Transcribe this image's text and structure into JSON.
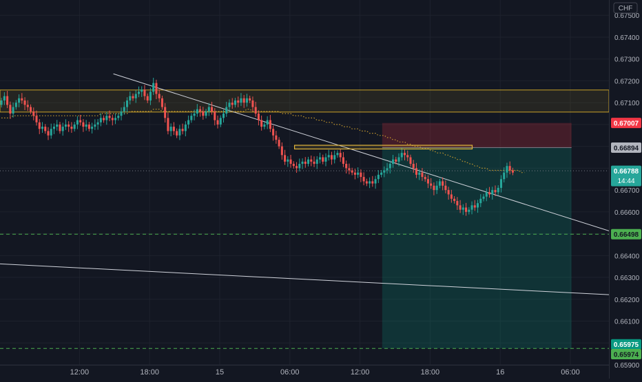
{
  "chart_data": {
    "type": "candlestick",
    "instrument_currency": "CHF",
    "ylim": [
      0.659,
      0.6757
    ],
    "y_ticks": [
      "0.67500",
      "0.67400",
      "0.67300",
      "0.67200",
      "0.67100",
      "0.67000",
      "0.66900",
      "0.66800",
      "0.66700",
      "0.66600",
      "0.66500",
      "0.66400",
      "0.66300",
      "0.66200",
      "0.66100",
      "0.66000",
      "0.65900"
    ],
    "x_ticks": [
      {
        "label": "12:00",
        "t": 12
      },
      {
        "label": "18:00",
        "t": 18
      },
      {
        "label": "15",
        "t": 24
      },
      {
        "label": "06:00",
        "t": 30
      },
      {
        "label": "12:00",
        "t": 36
      },
      {
        "label": "18:00",
        "t": 42
      },
      {
        "label": "16",
        "t": 48
      },
      {
        "label": "06:00",
        "t": 54
      }
    ],
    "xlim_hours": [
      5.2,
      57.3
    ],
    "bar_hours": 0.25,
    "candles_close": [
      0.6711,
      0.6713,
      0.6709,
      0.6705,
      0.6708,
      0.671,
      0.6712,
      0.6711,
      0.6709,
      0.6708,
      0.6706,
      0.6704,
      0.6701,
      0.6698,
      0.6699,
      0.6697,
      0.6695,
      0.6698,
      0.6699,
      0.67,
      0.6697,
      0.6699,
      0.67,
      0.6699,
      0.6698,
      0.67,
      0.6702,
      0.6701,
      0.6699,
      0.67,
      0.6698,
      0.6699,
      0.67,
      0.6701,
      0.6703,
      0.6702,
      0.6704,
      0.6703,
      0.6702,
      0.6703,
      0.6704,
      0.6706,
      0.6708,
      0.6711,
      0.6713,
      0.6712,
      0.6714,
      0.6715,
      0.6716,
      0.6713,
      0.6711,
      0.6715,
      0.6719,
      0.6714,
      0.6712,
      0.6708,
      0.6703,
      0.6697,
      0.6699,
      0.6697,
      0.6695,
      0.6698,
      0.6697,
      0.67,
      0.6702,
      0.6704,
      0.6705,
      0.6707,
      0.6706,
      0.6704,
      0.6706,
      0.6708,
      0.6706,
      0.6702,
      0.67,
      0.6703,
      0.6705,
      0.6708,
      0.671,
      0.6709,
      0.6711,
      0.671,
      0.6712,
      0.671,
      0.6712,
      0.6711,
      0.6708,
      0.6705,
      0.6702,
      0.6699,
      0.67,
      0.6702,
      0.6698,
      0.6695,
      0.6693,
      0.669,
      0.6686,
      0.6683,
      0.6684,
      0.6682,
      0.6681,
      0.668,
      0.6682,
      0.6683,
      0.6682,
      0.6684,
      0.6683,
      0.6682,
      0.6684,
      0.6685,
      0.6683,
      0.6685,
      0.6686,
      0.6684,
      0.6686,
      0.6687,
      0.6685,
      0.6682,
      0.668,
      0.6679,
      0.6678,
      0.6677,
      0.6678,
      0.6676,
      0.6674,
      0.6673,
      0.6674,
      0.6673,
      0.6675,
      0.6677,
      0.6678,
      0.6679,
      0.668,
      0.6682,
      0.6684,
      0.6683,
      0.6685,
      0.6687,
      0.6686,
      0.6685,
      0.6682,
      0.668,
      0.6677,
      0.6678,
      0.6676,
      0.6675,
      0.6673,
      0.6672,
      0.667,
      0.6672,
      0.6674,
      0.6672,
      0.667,
      0.6668,
      0.6666,
      0.6665,
      0.6663,
      0.6661,
      0.6662,
      0.666,
      0.6661,
      0.6663,
      0.6662,
      0.6664,
      0.6666,
      0.6667,
      0.6669,
      0.6668,
      0.667,
      0.6669,
      0.6671,
      0.6675,
      0.6678,
      0.6681,
      0.6679,
      0.6678
    ],
    "series": [
      {
        "type": "line",
        "style": "dotted",
        "color": "#c69a2e",
        "values": [
          0.6703,
          0.6703,
          0.6703,
          0.6703,
          0.6704,
          0.6704,
          0.6704,
          0.6704,
          0.6704,
          0.6704,
          0.6704,
          0.6704,
          0.6704,
          0.6704,
          0.6704,
          0.6704,
          0.6704,
          0.6704,
          0.6704,
          0.6704,
          0.6704,
          0.6704,
          0.6704,
          0.6704,
          0.6704,
          0.6704,
          0.6704,
          0.6704,
          0.6704,
          0.6704,
          0.6704,
          0.6704,
          0.6704,
          0.6704,
          0.6705,
          0.6705,
          0.6705,
          0.6705,
          0.6705,
          0.6705,
          0.6705,
          0.6705,
          0.6705,
          0.6705,
          0.6706,
          0.6706,
          0.6706,
          0.6706,
          0.6706,
          0.6706,
          0.6706,
          0.6706,
          0.6707,
          0.6707,
          0.6707,
          0.6706,
          0.6706,
          0.6706,
          0.6706,
          0.6706,
          0.6706,
          0.6706,
          0.6706,
          0.6706,
          0.6706,
          0.6706,
          0.6706,
          0.6706,
          0.6706,
          0.6706,
          0.6706,
          0.6706,
          0.6706,
          0.6706,
          0.6706,
          0.6706,
          0.6706,
          0.6706,
          0.6706,
          0.6706,
          0.6706,
          0.6706,
          0.6706,
          0.6706,
          0.6707,
          0.6707,
          0.6706,
          0.6706,
          0.6706,
          0.6706,
          0.6706,
          0.6706,
          0.6706,
          0.6706,
          0.6706,
          0.6706,
          0.6705,
          0.6705,
          0.6705,
          0.6705,
          0.6704,
          0.6704,
          0.6704,
          0.6704,
          0.6703,
          0.6703,
          0.6703,
          0.6703,
          0.6702,
          0.6702,
          0.6702,
          0.6701,
          0.6701,
          0.6701,
          0.67,
          0.67,
          0.67,
          0.6699,
          0.6699,
          0.6699,
          0.6698,
          0.6698,
          0.6698,
          0.6697,
          0.6697,
          0.6697,
          0.6696,
          0.6696,
          0.6696,
          0.6695,
          0.6695,
          0.6695,
          0.6694,
          0.6694,
          0.6693,
          0.6693,
          0.6692,
          0.6692,
          0.6692,
          0.6691,
          0.6691,
          0.669,
          0.669,
          0.669,
          0.6689,
          0.6689,
          0.6689,
          0.6688,
          0.6688,
          0.6687,
          0.6687,
          0.6687,
          0.6686,
          0.6686,
          0.6685,
          0.6685,
          0.6684,
          0.6684,
          0.6683,
          0.6683,
          0.6682,
          0.6682,
          0.6681,
          0.6681,
          0.668,
          0.668,
          0.668,
          0.6679,
          0.6679,
          0.6679,
          0.6679,
          0.6679,
          0.6679,
          0.6679,
          0.6679,
          0.6679,
          0.6679,
          0.6679,
          0.6678,
          0.6678
        ]
      }
    ],
    "drawings": {
      "zone_box": {
        "y_top": 0.67158,
        "y_bottom": 0.67057,
        "color": "#c9a227"
      },
      "small_box": {
        "t_start": 30.4,
        "t_end": 45.6,
        "y_top": 0.66905,
        "y_bottom": 0.66888,
        "color": "#e0b43a"
      },
      "trendline_upper": {
        "t1": 14.9,
        "y1": 0.67232,
        "t2": 57.3,
        "y2": 0.66513,
        "color": "#d1d4dc"
      },
      "trendline_lower": {
        "t1": 5.2,
        "y1": 0.66362,
        "t2": 57.3,
        "y2": 0.66221,
        "color": "#d1d4dc"
      },
      "position": {
        "type": "short",
        "t_start": 37.9,
        "t_end": 54.1,
        "entry": 0.66894,
        "stop": 0.67007,
        "target": 0.65975,
        "stop_color": "#f23645",
        "target_color": "#089981"
      },
      "h_lines": [
        {
          "y": 0.66498,
          "color": "#4caf50",
          "style": "dashed"
        },
        {
          "y": 0.65975,
          "color": "#4caf50",
          "style": "dashed"
        },
        {
          "y": 0.66788,
          "color": "#787b86",
          "style": "dotted"
        }
      ]
    },
    "price_labels": [
      {
        "text": "0.67007",
        "y": 0.67007,
        "bg": "#f23645",
        "fg": "#ffffff"
      },
      {
        "text": "0.66894",
        "y": 0.66894,
        "bg": "#b2b5be",
        "fg": "#131722"
      },
      {
        "text": "0.66788",
        "y": 0.66788,
        "bg": "#26a69a",
        "fg": "#ffffff",
        "sub": "14:44"
      },
      {
        "text": "0.66498",
        "y": 0.66498,
        "bg": "#4caf50",
        "fg": "#131722"
      },
      {
        "text": "0.65975",
        "y": 0.65975,
        "bg": "#089981",
        "fg": "#ffffff"
      },
      {
        "text": "0.65974",
        "y": 0.65974,
        "bg": "#4caf50",
        "fg": "#131722"
      }
    ],
    "colors": {
      "background": "#131722",
      "grid": "#1e222d",
      "up": "#26a69a",
      "down": "#ef5350",
      "text": "#b2b5be"
    }
  }
}
